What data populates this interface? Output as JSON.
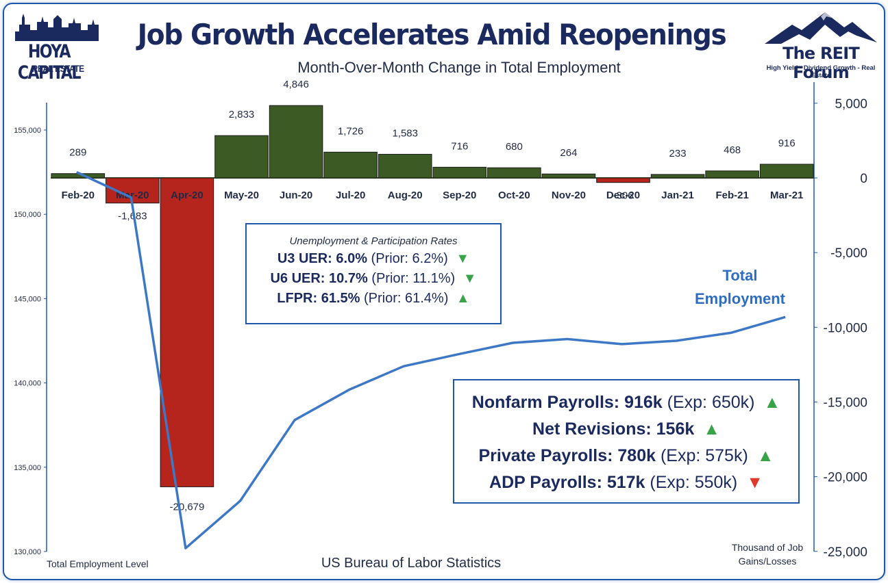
{
  "title": "Job Growth Accelerates Amid Reopenings",
  "subtitle": "Month-Over-Month Change in Total Employment",
  "logos": {
    "left_name": "HOYA CAPITAL",
    "left_sub": "REAL ESTATE",
    "right_name": "The REIT Forum",
    "right_tagline": "High Yield - Dividend Growth - Real Estate"
  },
  "rates_box": {
    "header": "Unemployment & Participation Rates",
    "rows": [
      {
        "label": "U3 UER: 6.0%",
        "prior": "(Prior: 6.2%)",
        "direction": "down"
      },
      {
        "label": "U6 UER: 10.7%",
        "prior": "(Prior: 11.1%)",
        "direction": "down"
      },
      {
        "label": "LFPR: 61.5%",
        "prior": "(Prior: 61.4%)",
        "direction": "up"
      }
    ]
  },
  "payrolls_box": {
    "rows": [
      {
        "label": "Nonfarm Payrolls: 916k",
        "extra": "(Exp: 650k)",
        "direction": "up"
      },
      {
        "label": "Net Revisions: 156k",
        "extra": "",
        "direction": "up"
      },
      {
        "label": "Private Payrolls: 780k",
        "extra": "(Exp: 575k)",
        "direction": "up"
      },
      {
        "label": "ADP Payrolls: 517k",
        "extra": "(Exp: 550k)",
        "direction": "down"
      }
    ]
  },
  "footer": {
    "left_axis_title": "Total Employment Level",
    "source": "US Bureau of Labor Statistics",
    "right_axis_title_line1": "Thousand of Job",
    "right_axis_title_line2": "Gains/Losses"
  },
  "series_label": {
    "line1": "Total",
    "line2": "Employment"
  },
  "colors": {
    "positive_bar": "#3b5a24",
    "negative_bar": "#b5251d",
    "line": "#3d78c6",
    "title": "#1a2a5e",
    "frame": "#1e56a8"
  },
  "chart_data": {
    "type": "bar",
    "categories": [
      "Feb-20",
      "Mar-20",
      "Apr-20",
      "May-20",
      "Jun-20",
      "Jul-20",
      "Aug-20",
      "Sep-20",
      "Oct-20",
      "Nov-20",
      "Dec-20",
      "Jan-21",
      "Feb-21",
      "Mar-21"
    ],
    "series": [
      {
        "type": "bar",
        "axis": "right",
        "values": [
          289,
          -1683,
          -20679,
          2833,
          4846,
          1726,
          1583,
          716,
          680,
          264,
          -306,
          233,
          468,
          916
        ],
        "data_labels": [
          "289",
          "-1,683",
          "-20,679",
          "2,833",
          "4,846",
          "1,726",
          "1,583",
          "716",
          "680",
          "264",
          "-306",
          "233",
          "468",
          "916"
        ]
      },
      {
        "name": "Total Employment",
        "type": "line",
        "axis": "left",
        "values": [
          152500,
          151000,
          130200,
          133000,
          137800,
          139600,
          140990,
          141700,
          142380,
          142600,
          142300,
          142500,
          142970,
          143910
        ]
      }
    ],
    "left_axis": {
      "ylim": [
        130000,
        157000
      ],
      "ticks": [
        130000,
        135000,
        140000,
        145000,
        150000,
        155000
      ],
      "tick_labels": [
        "130,000",
        "135,000",
        "140,000",
        "145,000",
        "150,000",
        "155,000"
      ]
    },
    "right_axis": {
      "ylim": [
        -25000,
        6000
      ],
      "ticks": [
        -25000,
        -20000,
        -15000,
        -10000,
        -5000,
        0,
        5000
      ],
      "tick_labels": [
        "-25,000",
        "-20,000",
        "-15,000",
        "-10,000",
        "-5,000",
        "0",
        "5,000"
      ]
    },
    "grid": false
  }
}
